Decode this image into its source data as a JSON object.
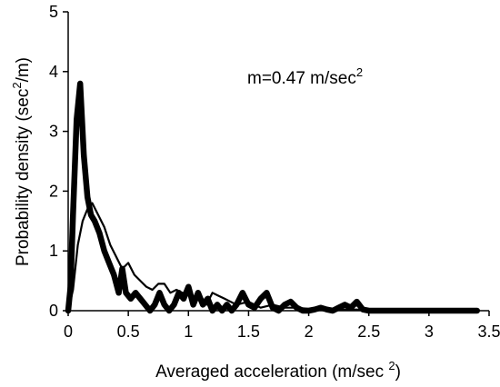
{
  "chart_data": {
    "type": "line",
    "title": "",
    "xlabel": "Averaged acceleration (m/sec 2)",
    "ylabel": "Probability density (sec2/m)",
    "xlabel_parts": {
      "pre": "Averaged acceleration (m/sec ",
      "sup": "2",
      "post": ")"
    },
    "ylabel_parts": {
      "pre": "Probability density (sec",
      "sup": "2",
      "post": "/m)"
    },
    "annotation": {
      "pre": "m=0.47 m/sec",
      "sup": "2"
    },
    "xlim": [
      0,
      3.5
    ],
    "ylim": [
      0,
      5
    ],
    "x_ticks": [
      "0",
      "0.5",
      "1",
      "1.5",
      "2",
      "2.5",
      "3",
      "3.5"
    ],
    "y_ticks": [
      "0",
      "1",
      "2",
      "3",
      "4",
      "5"
    ],
    "grid": false,
    "series": [
      {
        "style": "thick",
        "color": "#000000",
        "x": [
          0,
          0.02,
          0.04,
          0.07,
          0.1,
          0.13,
          0.16,
          0.19,
          0.22,
          0.26,
          0.3,
          0.34,
          0.38,
          0.42,
          0.45,
          0.48,
          0.52,
          0.56,
          0.6,
          0.64,
          0.68,
          0.72,
          0.76,
          0.8,
          0.84,
          0.88,
          0.92,
          0.96,
          1.0,
          1.04,
          1.08,
          1.12,
          1.16,
          1.2,
          1.24,
          1.28,
          1.32,
          1.36,
          1.4,
          1.45,
          1.5,
          1.55,
          1.6,
          1.65,
          1.7,
          1.75,
          1.8,
          1.85,
          1.9,
          1.95,
          2.0,
          2.05,
          2.1,
          2.15,
          2.2,
          2.25,
          2.3,
          2.35,
          2.4,
          2.45,
          2.5,
          2.6,
          2.8,
          3.0,
          3.2,
          3.4
        ],
        "y": [
          0,
          0.4,
          1.6,
          3.2,
          3.8,
          2.6,
          1.9,
          1.6,
          1.5,
          1.3,
          1.0,
          0.8,
          0.6,
          0.3,
          0.7,
          0.3,
          0.2,
          0.3,
          0.2,
          0.1,
          0.0,
          0.1,
          0.3,
          0.1,
          0.0,
          0.1,
          0.3,
          0.2,
          0.4,
          0.1,
          0.3,
          0.1,
          0.2,
          0.0,
          0.1,
          0.0,
          0.1,
          0.0,
          0.1,
          0.3,
          0.1,
          0.05,
          0.2,
          0.3,
          0.05,
          0.0,
          0.1,
          0.15,
          0.05,
          0.0,
          0.0,
          0.02,
          0.05,
          0.02,
          0.0,
          0.05,
          0.1,
          0.05,
          0.15,
          0.02,
          0.0,
          0.0,
          0.0,
          0.0,
          0.0,
          0.0
        ]
      },
      {
        "style": "thin",
        "color": "#000000",
        "x": [
          0,
          0.04,
          0.08,
          0.12,
          0.16,
          0.2,
          0.25,
          0.3,
          0.35,
          0.4,
          0.45,
          0.5,
          0.55,
          0.6,
          0.65,
          0.7,
          0.75,
          0.8,
          0.85,
          0.9,
          0.95,
          1.0,
          1.05,
          1.1,
          1.15,
          1.2,
          1.25,
          1.3,
          1.4,
          1.5,
          1.6,
          1.7,
          1.8,
          1.9,
          2.0,
          2.2,
          2.4,
          2.6,
          3.0,
          3.4
        ],
        "y": [
          0,
          0.35,
          1.1,
          1.5,
          1.7,
          1.8,
          1.6,
          1.4,
          1.1,
          0.9,
          0.7,
          0.8,
          0.6,
          0.5,
          0.4,
          0.35,
          0.45,
          0.45,
          0.3,
          0.35,
          0.3,
          0.3,
          0.15,
          0.25,
          0.1,
          0.3,
          0.25,
          0.2,
          0.1,
          0.15,
          0.05,
          0.1,
          0.05,
          0.05,
          0.03,
          0.02,
          0.02,
          0.0,
          0.0,
          0.0
        ]
      }
    ]
  }
}
